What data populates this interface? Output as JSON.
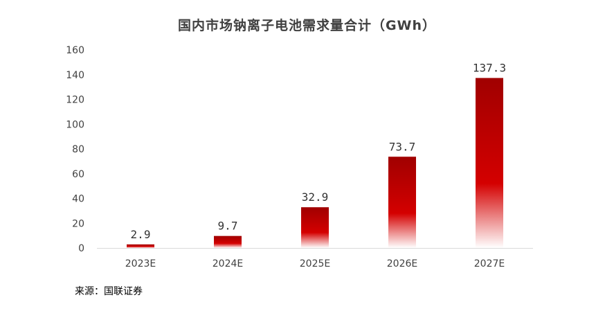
{
  "chart_data": {
    "type": "bar",
    "title": "国内市场钠离子电池需求量合计（GWh）",
    "categories": [
      "2023E",
      "2024E",
      "2025E",
      "2026E",
      "2027E"
    ],
    "values": [
      2.9,
      9.7,
      32.9,
      73.7,
      137.3
    ],
    "data_labels": [
      "2.9",
      "9.7",
      "32.9",
      "73.7",
      "137.3"
    ],
    "ylim": [
      0,
      160
    ],
    "yticks": [
      0,
      20,
      40,
      60,
      80,
      100,
      120,
      140,
      160
    ],
    "ytick_labels": [
      "0",
      "20",
      "40",
      "60",
      "80",
      "100",
      "120",
      "140",
      "160"
    ],
    "xlabel": "",
    "ylabel": "",
    "grid": false,
    "legend": "none",
    "bar_colors": {
      "top": "#a00000",
      "mid": "#d40000",
      "bottom": "#ffffff"
    }
  },
  "source": "来源：国联证券"
}
